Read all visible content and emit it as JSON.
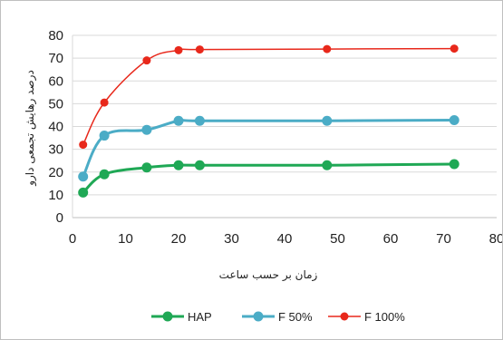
{
  "chart_data": {
    "type": "line",
    "title": "",
    "xlabel": "زمان بر حسب ساعت",
    "ylabel": "درصد رهایش تجمعی دارو",
    "xlim": [
      0,
      80
    ],
    "ylim": [
      0,
      80
    ],
    "xticks": [
      0,
      10,
      20,
      30,
      40,
      50,
      60,
      70,
      80
    ],
    "yticks": [
      0,
      10,
      20,
      30,
      40,
      50,
      60,
      70,
      80
    ],
    "grid": "horizontal",
    "legend_position": "bottom",
    "x": [
      2,
      6,
      14,
      20,
      24,
      48,
      72
    ],
    "series": [
      {
        "name": "HAP",
        "color": "#1fa855",
        "values": [
          11,
          19,
          22,
          23,
          23,
          23,
          23.5
        ]
      },
      {
        "name": "F 50%",
        "color": "#4bacc6",
        "values": [
          18,
          36,
          38.5,
          42.5,
          42.5,
          42.5,
          42.8
        ]
      },
      {
        "name": "F 100%",
        "color": "#e8281b",
        "values": [
          32,
          50.5,
          69,
          73.5,
          73.8,
          74,
          74.2
        ]
      }
    ]
  }
}
